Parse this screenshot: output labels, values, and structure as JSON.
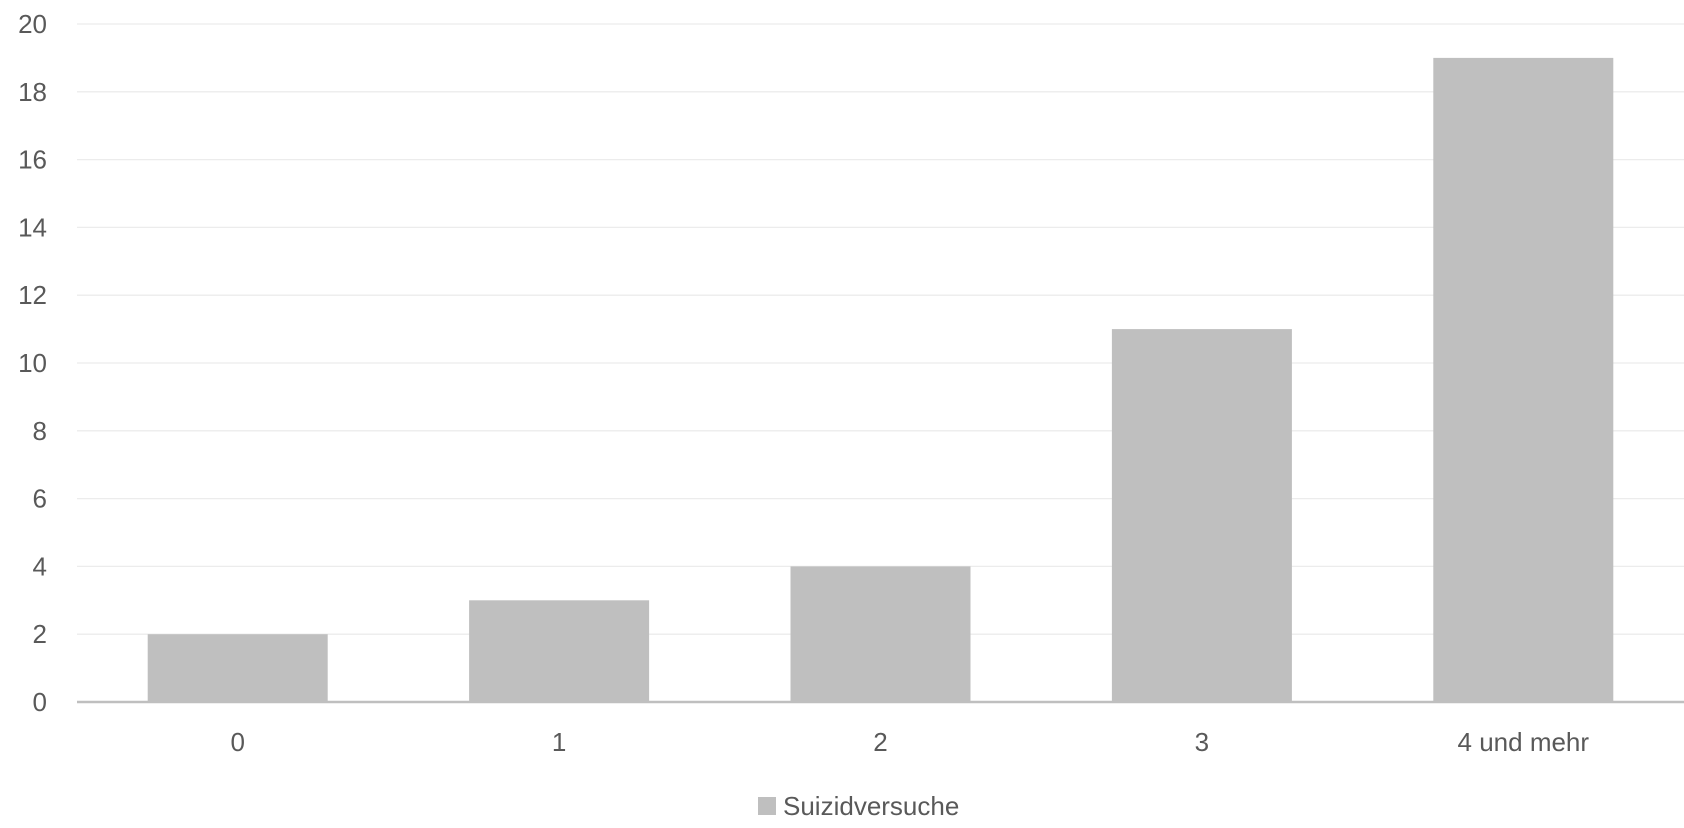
{
  "chart_data": {
    "type": "bar",
    "categories": [
      "0",
      "1",
      "2",
      "3",
      "4 und mehr"
    ],
    "series": [
      {
        "name": "Suizidversuche",
        "values": [
          2,
          3,
          4,
          11,
          19
        ],
        "color": "#bfbfbf"
      }
    ],
    "ylim": [
      0,
      20
    ],
    "yticks": [
      0,
      2,
      4,
      6,
      8,
      10,
      12,
      14,
      16,
      18,
      20
    ],
    "grid": true,
    "gridline_color": "#ececec",
    "axis_color": "#bfbfbf",
    "text_color": "#595959",
    "legend_position": "bottom"
  }
}
